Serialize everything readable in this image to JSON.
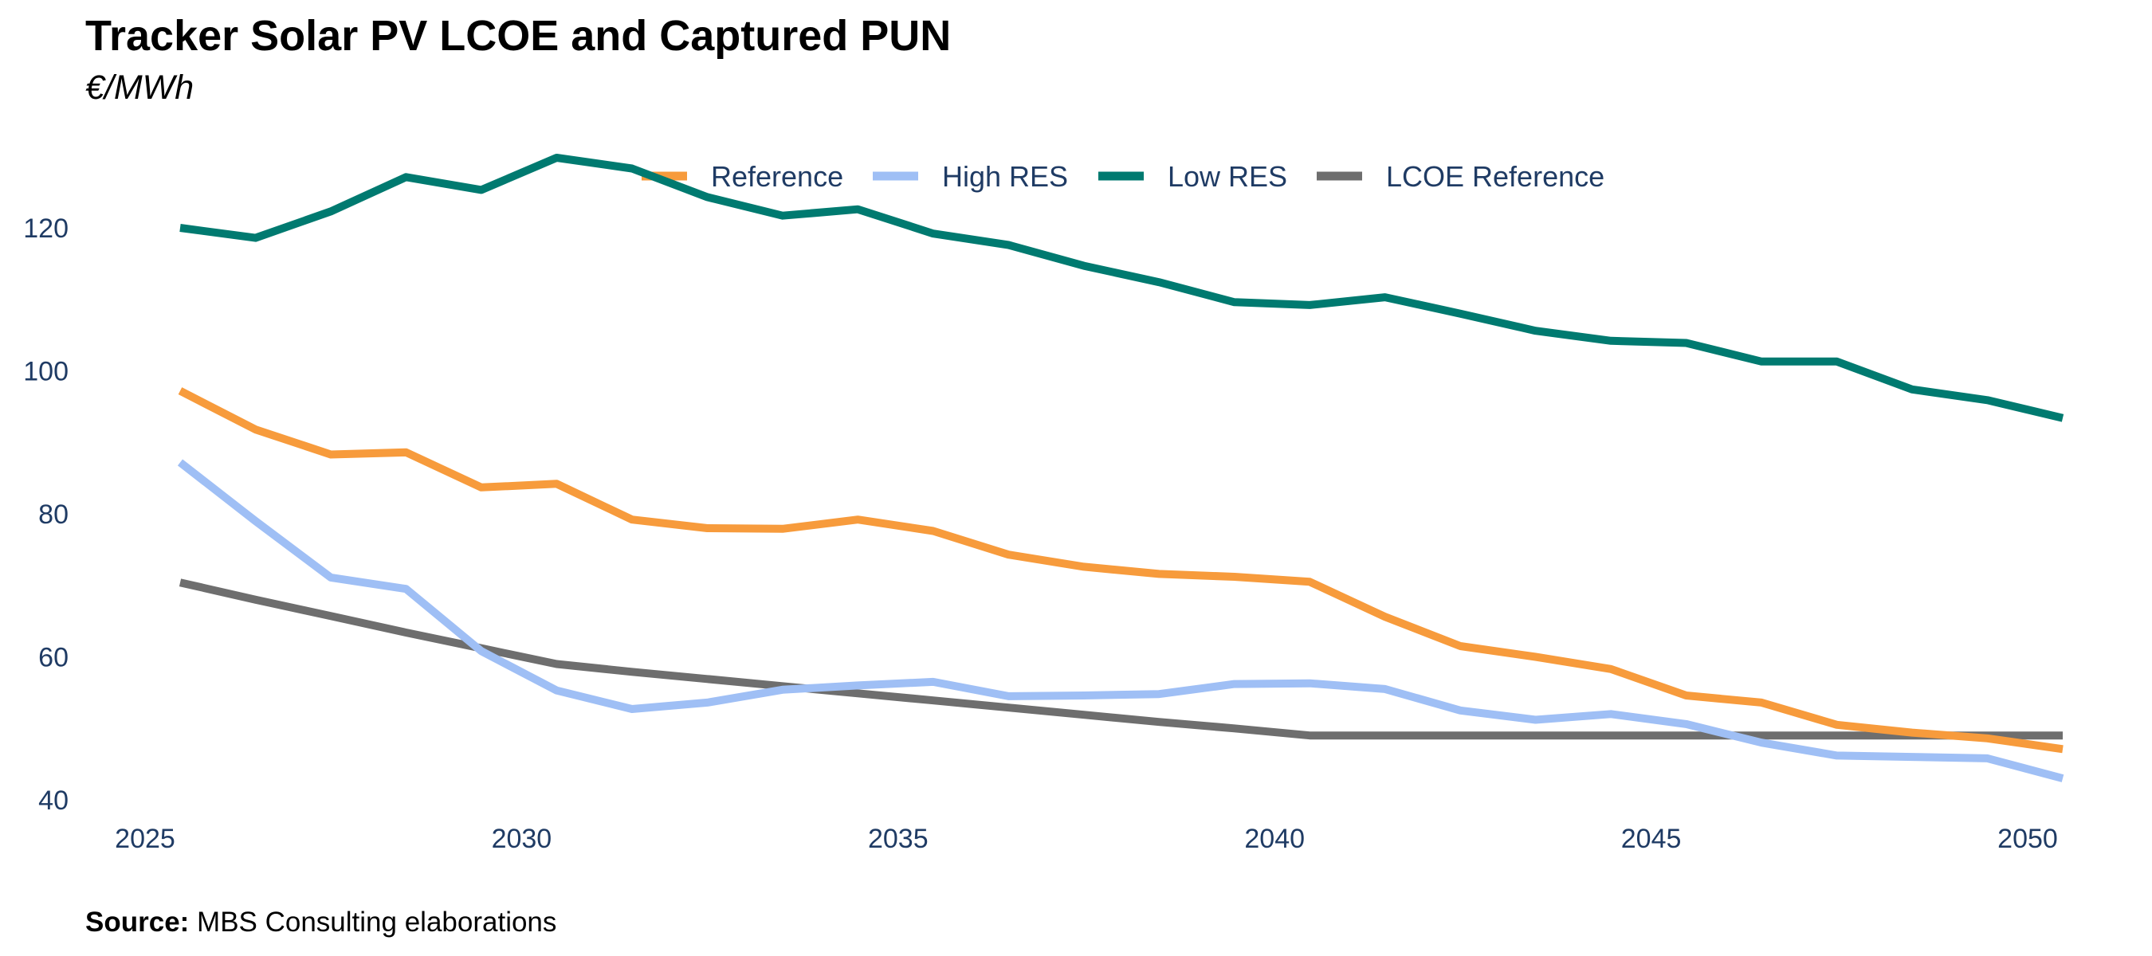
{
  "title": "Tracker Solar PV LCOE and Captured PUN",
  "subtitle": "€/MWh",
  "source": {
    "label": "Source:",
    "text": " MBS Consulting elaborations"
  },
  "chart_data": {
    "type": "line",
    "title": "Tracker Solar PV LCOE and Captured PUN",
    "subtitle": "€/MWh",
    "xlabel": "",
    "ylabel": "",
    "xlim": [
      2025,
      2050
    ],
    "ylim": [
      40,
      130
    ],
    "x_ticks": [
      2025,
      2030,
      2035,
      2040,
      2045,
      2050
    ],
    "y_ticks": [
      40,
      60,
      80,
      100,
      120
    ],
    "grid": false,
    "legend_position": "top-center",
    "x": [
      2025,
      2026,
      2027,
      2028,
      2029,
      2030,
      2031,
      2032,
      2033,
      2034,
      2035,
      2036,
      2037,
      2038,
      2039,
      2040,
      2041,
      2042,
      2043,
      2044,
      2045,
      2046,
      2047,
      2048,
      2049,
      2050
    ],
    "series": [
      {
        "name": "Reference",
        "color": "#f79b3c",
        "values": [
          97.2,
          91.8,
          88.3,
          88.6,
          83.7,
          84.2,
          79.2,
          78.0,
          77.9,
          79.2,
          77.6,
          74.3,
          72.6,
          71.6,
          71.2,
          70.5,
          65.6,
          61.5,
          60.0,
          58.3,
          54.6,
          53.6,
          50.5,
          49.4,
          48.6,
          47.1
        ]
      },
      {
        "name": "High RES",
        "color": "#9fbff5",
        "values": [
          87.2,
          79.0,
          71.1,
          69.5,
          60.8,
          55.3,
          52.7,
          53.6,
          55.4,
          56.0,
          56.5,
          54.5,
          54.6,
          54.8,
          56.2,
          56.3,
          55.5,
          52.5,
          51.2,
          52.0,
          50.6,
          48.0,
          46.2,
          46.0,
          45.8,
          43.0
        ]
      },
      {
        "name": "Low RES",
        "color": "#007a70",
        "values": [
          120.0,
          118.6,
          122.3,
          127.1,
          125.3,
          129.8,
          128.3,
          124.3,
          121.7,
          122.6,
          119.2,
          117.6,
          114.7,
          112.4,
          109.6,
          109.2,
          110.3,
          108.0,
          105.6,
          104.2,
          103.9,
          101.3,
          101.3,
          97.4,
          95.9,
          93.4
        ]
      },
      {
        "name": "LCOE Reference",
        "color": "#6e6e6e",
        "values": [
          70.4,
          68.0,
          65.7,
          63.4,
          61.2,
          59.0,
          57.9,
          56.9,
          55.9,
          54.9,
          53.9,
          52.9,
          51.9,
          50.9,
          50.0,
          49.0,
          49.0,
          49.0,
          49.0,
          49.0,
          49.0,
          49.0,
          49.0,
          49.0,
          49.0,
          49.0
        ]
      }
    ]
  }
}
